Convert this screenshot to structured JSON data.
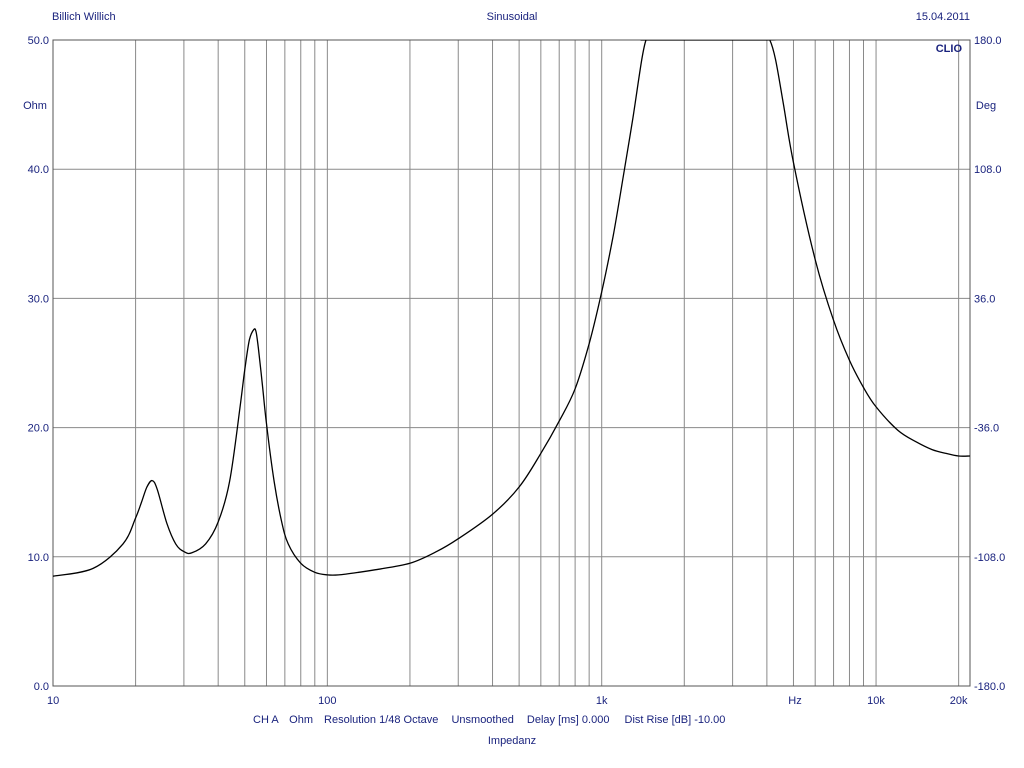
{
  "header": {
    "left": "Billich Willich",
    "center": "Sinusoidal",
    "right": "15.04.2011"
  },
  "brand": "CLIO",
  "footer": {
    "ch": "CH A",
    "unit": "Ohm",
    "resolution": "Resolution 1/48 Octave",
    "smoothing": "Unsmoothed",
    "delay": "Delay [ms] 0.000",
    "dist_rise": "Dist Rise [dB] -10.00",
    "measurement": "Impedanz"
  },
  "colors": {
    "axis_text": "#1a237e",
    "grid": "#8a8a8a",
    "curve": "#000000",
    "frame": "#555555"
  },
  "chart_data": {
    "type": "line",
    "title": "",
    "xscale": "log",
    "xlim": [
      10,
      22000
    ],
    "ylim": [
      0,
      50
    ],
    "y2lim": [
      -180,
      180
    ],
    "grid": true,
    "xlabel": "Hz",
    "ylabel": "Ohm",
    "y2label": "Deg",
    "x_ticks": [
      {
        "v": 10,
        "label": "10"
      },
      {
        "v": 100,
        "label": "100"
      },
      {
        "v": 1000,
        "label": "1k"
      },
      {
        "v": 10000,
        "label": "10k"
      },
      {
        "v": 20000,
        "label": "20k"
      }
    ],
    "y_ticks": [
      {
        "v": 0,
        "label": "0.0"
      },
      {
        "v": 10,
        "label": "10.0"
      },
      {
        "v": 20,
        "label": "20.0"
      },
      {
        "v": 30,
        "label": "30.0"
      },
      {
        "v": 40,
        "label": "40.0"
      },
      {
        "v": 50,
        "label": "50.0"
      }
    ],
    "y2_ticks": [
      {
        "v": -180,
        "label": "-180.0"
      },
      {
        "v": -108,
        "label": "-108.0"
      },
      {
        "v": -36,
        "label": "-36.0"
      },
      {
        "v": 36,
        "label": "36.0"
      },
      {
        "v": 108,
        "label": "108.0"
      },
      {
        "v": 180,
        "label": "180.0"
      }
    ],
    "series": [
      {
        "x": [
          10,
          14,
          18,
          20,
          21,
          22,
          23,
          24,
          26,
          28,
          30,
          32,
          36,
          40,
          44,
          48,
          50,
          52,
          54,
          55,
          56,
          58,
          60,
          64,
          68,
          72,
          80,
          90,
          100,
          110,
          130,
          150,
          200,
          250,
          300,
          400,
          500,
          600,
          700,
          800,
          900,
          1000,
          1100,
          1200,
          1300,
          1400,
          1450,
          1480,
          1500,
          4000,
          4100,
          4300,
          4600,
          5000,
          6000,
          7000,
          8000,
          9000,
          10000,
          12000,
          14000,
          16000,
          18000,
          20000,
          22000
        ],
        "y": [
          8.5,
          9.1,
          11.0,
          13.0,
          14.2,
          15.4,
          15.9,
          15.2,
          12.6,
          11.0,
          10.4,
          10.3,
          11.0,
          12.7,
          15.8,
          21.5,
          24.5,
          26.8,
          27.6,
          27.4,
          26.2,
          23.3,
          20.3,
          15.8,
          12.8,
          11.0,
          9.5,
          8.8,
          8.6,
          8.6,
          8.8,
          9.0,
          9.5,
          10.4,
          11.4,
          13.3,
          15.4,
          18.0,
          20.5,
          23.0,
          26.5,
          30.5,
          34.8,
          39.5,
          44.0,
          48.5,
          50.0,
          50.0,
          50.0,
          50.0,
          50.0,
          48.5,
          45.0,
          40.5,
          33.0,
          28.3,
          25.2,
          23.1,
          21.6,
          19.8,
          18.9,
          18.3,
          18.0,
          17.8,
          17.8
        ]
      }
    ]
  }
}
